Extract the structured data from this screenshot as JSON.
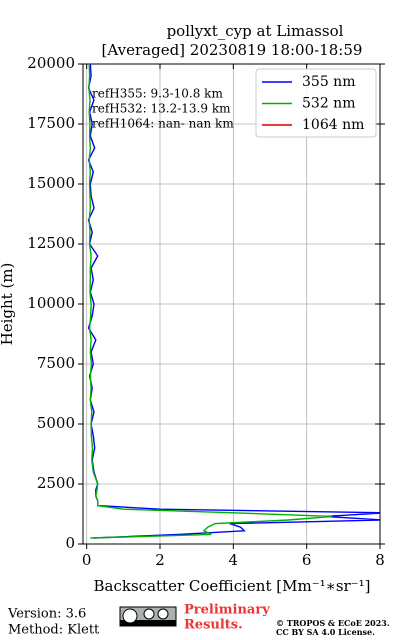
{
  "chart_data": {
    "type": "profile",
    "title": "pollyxt_cyp at Limassol",
    "subtitle": "[Averaged] 20230819 18:00-18:59",
    "xlabel": "Backscatter Coefficient [Mm⁻¹∗sr⁻¹]",
    "ylabel": "Height (m)",
    "annotations": [
      "refH355:  9.3-10.8 km",
      "refH532: 13.2-13.9 km",
      "refH1064:  nan- nan km"
    ],
    "xlim": [
      -0.1,
      8
    ],
    "xticks": [
      0,
      2,
      4,
      6,
      8
    ],
    "ylim": [
      0,
      20000
    ],
    "yticks": [
      0,
      2500,
      5000,
      7500,
      10000,
      12500,
      15000,
      17500,
      20000
    ],
    "grid": true,
    "legend": "upper right",
    "heights": [
      250,
      400,
      550,
      700,
      850,
      1000,
      1150,
      1300,
      1450,
      1600,
      1800,
      2000,
      2250,
      2500,
      3000,
      3500,
      4000,
      4500,
      5000,
      5500,
      6000,
      6500,
      7000,
      7500,
      8000,
      8500,
      9000,
      9500,
      10000,
      10500,
      11000,
      11500,
      12000,
      12500,
      13000,
      13500,
      14000,
      14500,
      15000,
      15500,
      16000,
      16500,
      17000,
      17500,
      18000,
      18500,
      19000,
      19500,
      20000
    ],
    "series": [
      {
        "name": "355 nm",
        "color": "#0000ff",
        "values": [
          0.2,
          2.5,
          4.3,
          4.2,
          3.9,
          8.1,
          6.5,
          8.2,
          2.0,
          0.3,
          0.3,
          0.25,
          0.25,
          0.3,
          0.2,
          0.15,
          0.22,
          0.18,
          0.12,
          0.2,
          0.1,
          0.15,
          0.08,
          0.18,
          0.12,
          0.25,
          0.05,
          0.15,
          0.2,
          0.1,
          0.18,
          0.12,
          0.3,
          0.08,
          0.15,
          0.05,
          0.2,
          0.12,
          0.1,
          0.18,
          0.05,
          0.22,
          0.1,
          0.15,
          0.08,
          0.2,
          0.05,
          0.12,
          0.1
        ]
      },
      {
        "name": "532 nm",
        "color": "#00b000",
        "values": [
          0.1,
          3.4,
          3.2,
          3.3,
          3.5,
          5.5,
          6.7,
          4.0,
          1.0,
          0.3,
          0.3,
          0.25,
          0.28,
          0.3,
          0.18,
          0.14,
          0.16,
          0.13,
          0.12,
          0.14,
          0.1,
          0.12,
          0.1,
          0.13,
          0.1,
          0.12,
          0.08,
          0.11,
          0.12,
          0.09,
          0.1,
          0.1,
          0.12,
          0.08,
          0.09,
          0.07,
          0.1,
          0.09,
          0.08,
          0.1,
          0.07,
          0.1,
          0.08,
          0.09,
          0.07,
          0.09,
          0.06,
          0.08,
          0.07
        ]
      },
      {
        "name": "1064 nm",
        "color": "#e00000",
        "values": [
          null,
          null,
          null,
          null,
          null,
          null,
          null,
          null,
          null,
          null,
          null,
          null,
          null,
          null,
          null,
          null,
          null,
          null,
          null,
          null,
          null,
          null,
          null,
          null,
          null,
          null,
          null,
          null,
          null,
          null,
          null,
          null,
          null,
          null,
          null,
          null,
          null,
          null,
          null,
          null,
          null,
          null,
          null,
          null,
          null,
          null,
          null,
          null,
          null
        ]
      }
    ]
  },
  "footer": {
    "version": "Version: 3.6",
    "method": "Method: Klett",
    "status": [
      "Preliminary",
      "Results."
    ],
    "copyright": [
      "© TROPOS & ECoE 2023.",
      "CC BY SA 4.0 License."
    ]
  }
}
